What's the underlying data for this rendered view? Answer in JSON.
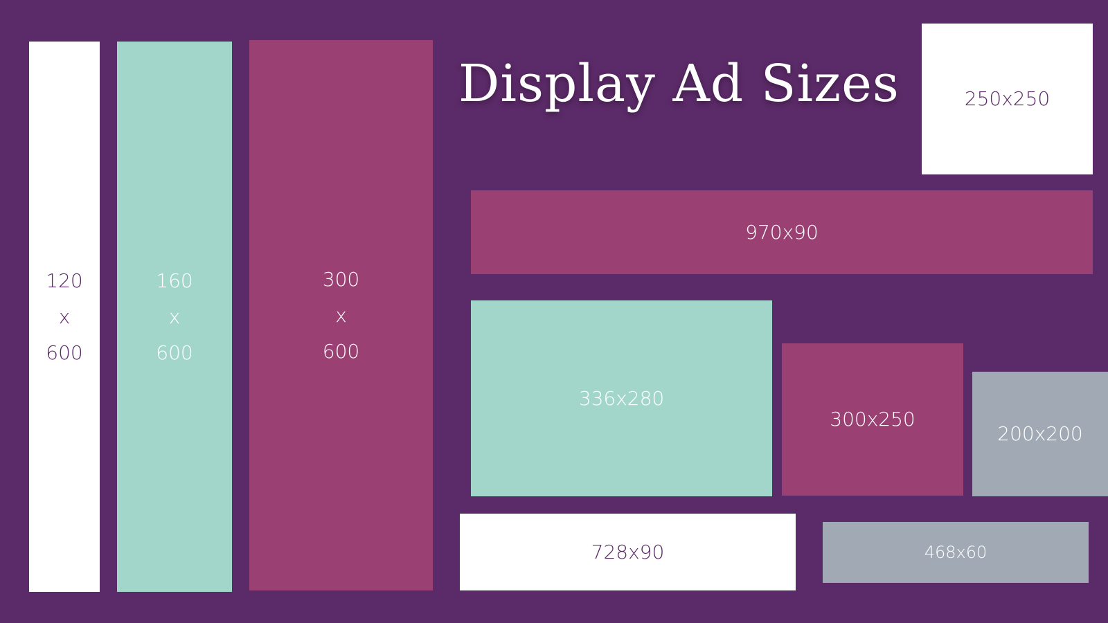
{
  "title": "Display Ad Sizes",
  "colors": {
    "background": "#5b2a68",
    "white": "#ffffff",
    "teal": "#a3d6cb",
    "plum": "#9b4073",
    "grey": "#a1aab4"
  },
  "ads": {
    "a120x600": "120\nx\n600",
    "a160x600": "160\nx\n600",
    "a300x600": "300\nx\n600",
    "a250x250": "250x250",
    "a970x90": "970x90",
    "a336x280": "336x280",
    "a300x250": "300x250",
    "a200x200": "200x200",
    "a728x90": "728x90",
    "a468x60": "468x60"
  }
}
